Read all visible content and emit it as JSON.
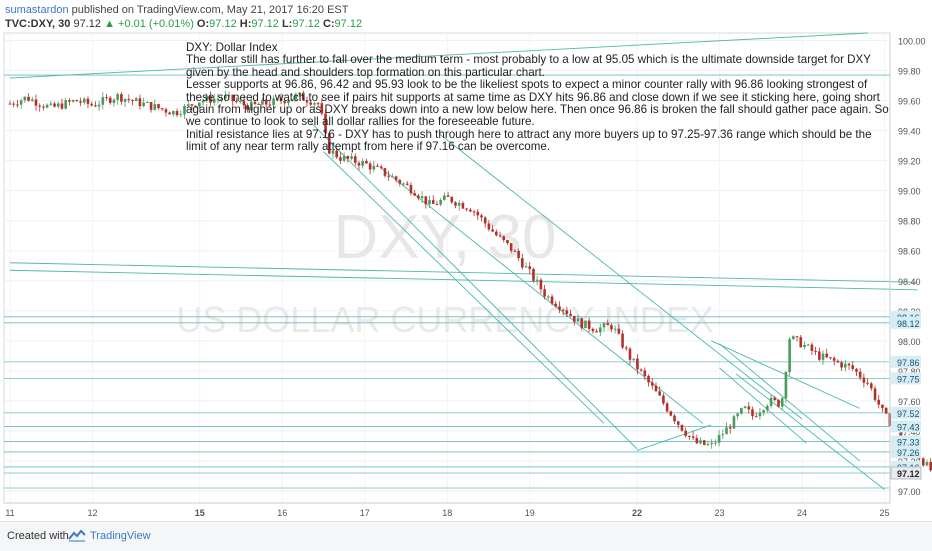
{
  "header": {
    "author": "sumastardon",
    "published_text": "published on TradingView.com, May 21, 2017 16:20 EST"
  },
  "ohlc": {
    "symbol": "TVC:DXY, 30",
    "last": "97.12",
    "change": "▲ +0.01 (+0.01%)",
    "o_label": "O:",
    "o": "97.12",
    "h_label": "H:",
    "h": "97.12",
    "l_label": "L:",
    "l": "97.12",
    "c_label": "C:",
    "c": "97.12"
  },
  "idea_text": {
    "title": "DXY: Dollar Index",
    "p1": "The dollar still has further to fall over the medium term - most probably to a low at 95.05 which is the ultimate downside target for DXY given by the head and shoulders top formation on this particular chart.",
    "p2": "Lesser supports at 96.86, 96.42 and 95.93 look to be the likeliest spots to expect a minor counter rally with 96.86 looking strongest of these so need to watch to see if pairs hit supports at same time as DXY hits 96.86 and close down if we see it sticking here, going short again from higher up or as DXY breaks down into a new low below here. Then once 96.86 is broken the fall should gather pace again. So we continue to look to sell all dollar rallies for the foreseeable future.",
    "p3": "Initial resistance lies at 97.16 - DXY has to push through here to attract any more buyers up to 97.25-97.36 range which should be the limit of any near term rally attempt from here if 97.16 can be overcome."
  },
  "watermark": {
    "symbol": "DXY, 30",
    "name": "US DOLLAR CURRENCY INDEX"
  },
  "footer": {
    "created_with": "Created with",
    "brand": "TradingView"
  },
  "colors": {
    "up": "#4c9a5e",
    "down": "#b5302a",
    "trendline": "#4fb7a8",
    "hline": "#5ab5b8",
    "price_tag": "#d6eef3",
    "last_tag": "#e8eaed",
    "axis_text": "#555555"
  },
  "chart_data": {
    "type": "candlestick",
    "ylim": [
      96.92,
      100.05
    ],
    "y_ticks": [
      "100.00",
      "99.80",
      "99.60",
      "99.40",
      "99.20",
      "99.00",
      "98.80",
      "98.60",
      "98.40",
      "98.20",
      "98.00",
      "97.80",
      "97.60",
      "97.40",
      "97.20",
      "97.00"
    ],
    "x_ticks": [
      "11",
      "12",
      "15",
      "16",
      "17",
      "18",
      "19",
      "22",
      "23",
      "24",
      "25"
    ],
    "price_tags": [
      "98.16",
      "98.12",
      "97.86",
      "97.75",
      "97.52",
      "97.43",
      "97.33",
      "97.26",
      "97.16"
    ],
    "last_price": "97.12",
    "close_path": [
      [
        0,
        99.58
      ],
      [
        0.2,
        99.62
      ],
      [
        0.5,
        99.55
      ],
      [
        0.8,
        99.6
      ],
      [
        1.0,
        99.57
      ],
      [
        1.3,
        99.63
      ],
      [
        1.6,
        99.58
      ],
      [
        2.0,
        99.52
      ],
      [
        2.3,
        99.6
      ],
      [
        2.6,
        99.62
      ],
      [
        2.9,
        99.56
      ],
      [
        3.2,
        99.59
      ],
      [
        3.5,
        99.63
      ],
      [
        3.75,
        99.58
      ],
      [
        3.85,
        99.28
      ],
      [
        4.0,
        99.22
      ],
      [
        4.3,
        99.18
      ],
      [
        4.6,
        99.1
      ],
      [
        4.9,
        99.0
      ],
      [
        5.1,
        98.9
      ],
      [
        5.3,
        98.95
      ],
      [
        5.6,
        98.88
      ],
      [
        5.9,
        98.7
      ],
      [
        6.1,
        98.6
      ],
      [
        6.3,
        98.45
      ],
      [
        6.5,
        98.3
      ],
      [
        6.7,
        98.22
      ],
      [
        6.9,
        98.12
      ],
      [
        7.1,
        98.08
      ],
      [
        7.3,
        98.1
      ],
      [
        7.5,
        97.9
      ],
      [
        7.7,
        97.75
      ],
      [
        7.9,
        97.6
      ],
      [
        8.1,
        97.45
      ],
      [
        8.3,
        97.32
      ],
      [
        8.5,
        97.3
      ],
      [
        8.7,
        97.42
      ],
      [
        8.9,
        97.55
      ],
      [
        9.0,
        97.5
      ],
      [
        9.2,
        97.6
      ],
      [
        9.35,
        97.58
      ],
      [
        9.45,
        98.02
      ],
      [
        9.6,
        97.98
      ],
      [
        9.8,
        97.9
      ],
      [
        10.0,
        97.86
      ],
      [
        10.2,
        97.82
      ],
      [
        10.4,
        97.72
      ],
      [
        10.6,
        97.5
      ],
      [
        10.8,
        97.38
      ],
      [
        11.0,
        97.25
      ],
      [
        11.15,
        97.14
      ],
      [
        11.3,
        97.12
      ]
    ]
  }
}
